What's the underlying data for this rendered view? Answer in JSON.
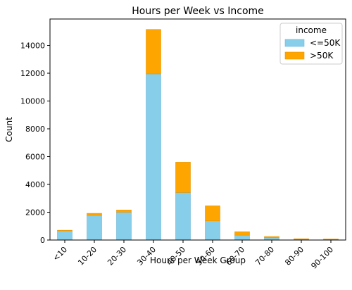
{
  "chart_data": {
    "type": "bar",
    "stacked": true,
    "title": "Hours per Week vs Income",
    "xlabel": "Hours per Week Group",
    "ylabel": "Count",
    "ylim": [
      0,
      15900
    ],
    "yticks": [
      0,
      2000,
      4000,
      6000,
      8000,
      10000,
      12000,
      14000
    ],
    "categories": [
      "<10",
      "10-20",
      "20-30",
      "30-40",
      "40-50",
      "50-60",
      "60-70",
      "70-80",
      "80-90",
      "90-100"
    ],
    "series": [
      {
        "name": "<=50K",
        "color": "#87ceeb",
        "values": [
          660,
          1780,
          2000,
          11950,
          3420,
          1380,
          350,
          160,
          60,
          50
        ]
      },
      {
        "name": ">50K",
        "color": "#ffa500",
        "values": [
          40,
          140,
          160,
          3200,
          2180,
          1080,
          250,
          90,
          30,
          20
        ]
      }
    ],
    "legend": {
      "title": "income",
      "position": "top-right"
    },
    "grid": false
  }
}
